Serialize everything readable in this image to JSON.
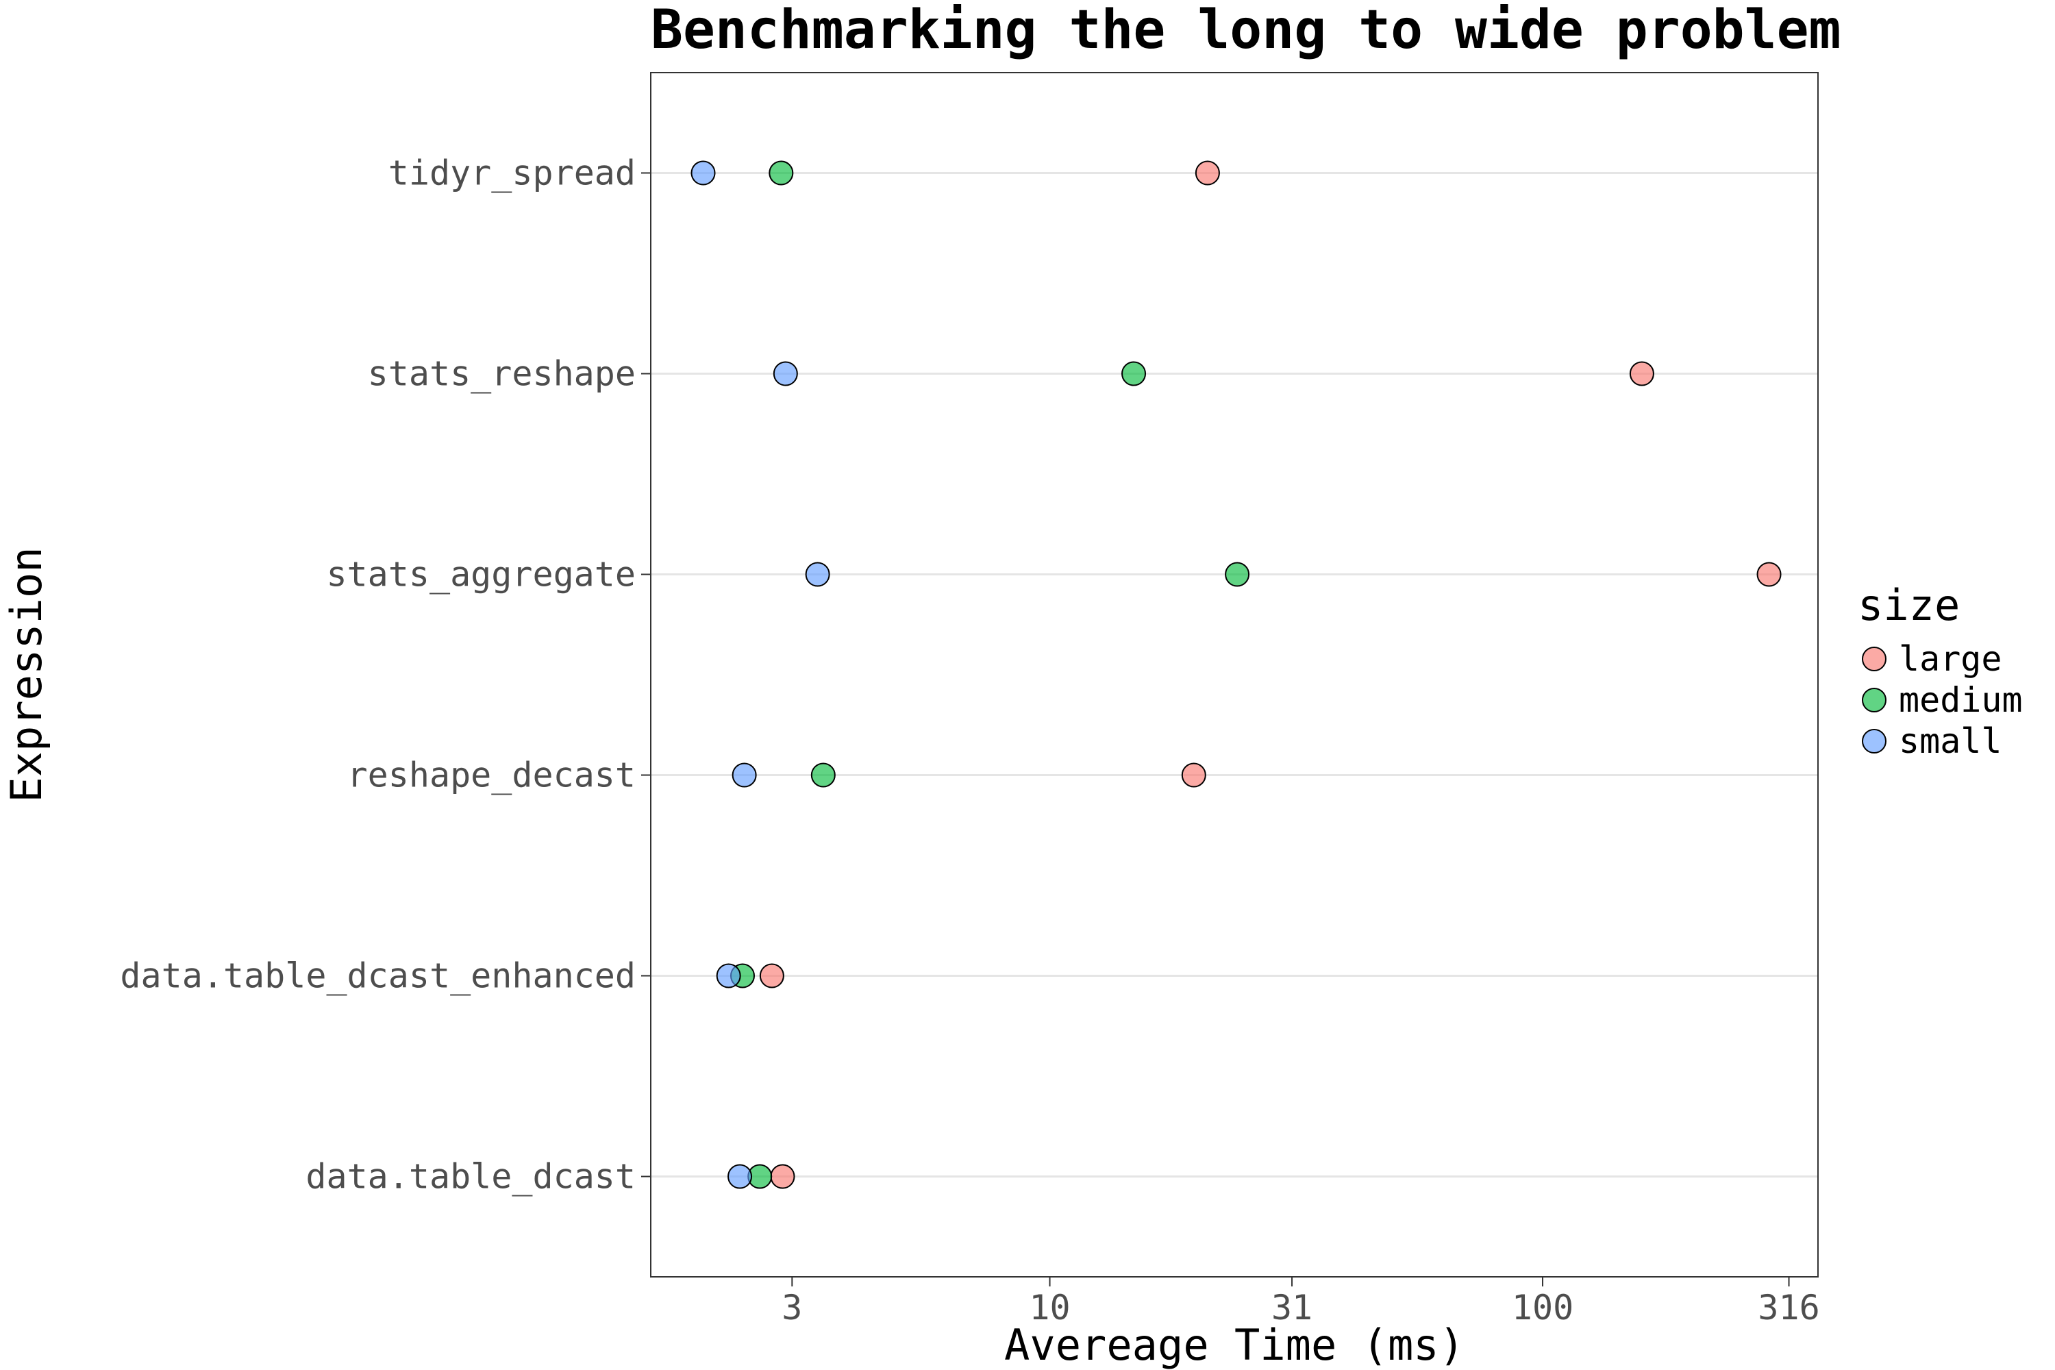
{
  "chart_data": {
    "type": "scatter",
    "title": "Benchmarking the long to wide problem",
    "xlabel": "Avereage Time (ms)",
    "ylabel": "Expression",
    "x_scale": "log10",
    "x_ticks": [
      3,
      10,
      31,
      100,
      316
    ],
    "xlim": [
      1.55,
      362
    ],
    "categories": [
      "tidyr_spread",
      "stats_reshape",
      "stats_aggregate",
      "reshape_decast",
      "data.table_dcast_enhanced",
      "data.table_dcast"
    ],
    "legend": {
      "title": "size",
      "placement": "right"
    },
    "grid": "horizontal-major",
    "series": [
      {
        "name": "large",
        "color": "#F8766D",
        "values": [
          20.9,
          159,
          288,
          19.6,
          2.73,
          2.87
        ]
      },
      {
        "name": "medium",
        "color": "#00BA38",
        "values": [
          2.85,
          14.8,
          24.0,
          3.47,
          2.38,
          2.58
        ]
      },
      {
        "name": "small",
        "color": "#619CFF",
        "values": [
          1.98,
          2.91,
          3.38,
          2.4,
          2.23,
          2.35
        ]
      }
    ]
  }
}
